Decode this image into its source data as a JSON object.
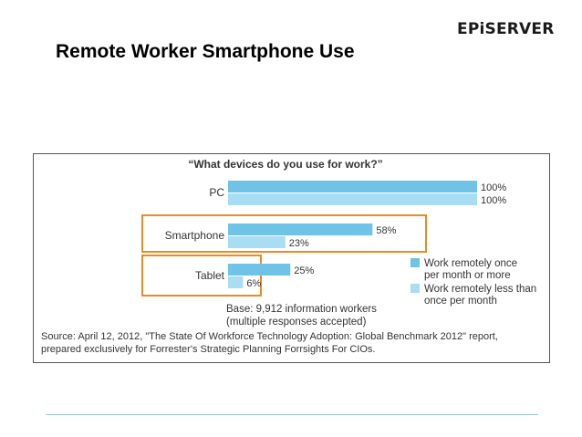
{
  "header": {
    "logo_text": "EPiSERVER",
    "title": "Remote Worker Smartphone Use"
  },
  "colors": {
    "series_once_or_more": "#6ec3e6",
    "series_less_than_once": "#a9ddf3",
    "highlight_box": "#e98b26",
    "frame": "#555555",
    "rule": "#9ec9de"
  },
  "chart_data": {
    "type": "bar",
    "orientation": "horizontal",
    "title": "“What devices do you use for work?”",
    "categories": [
      "PC",
      "Smartphone",
      "Tablet"
    ],
    "highlighted_categories": [
      "Smartphone",
      "Tablet"
    ],
    "series": [
      {
        "name": "Work remotely once per month or more",
        "values": [
          100,
          58,
          25
        ],
        "labels": [
          "100%",
          "58%",
          "25%"
        ]
      },
      {
        "name": "Work remotely less than once per month",
        "values": [
          100,
          23,
          6
        ],
        "labels": [
          "100%",
          "23%",
          "6%"
        ]
      }
    ],
    "xlim": [
      0,
      100
    ],
    "unit": "%",
    "legend": [
      {
        "line1": "Work remotely once",
        "line2": "per month or more"
      },
      {
        "line1": "Work remotely less than",
        "line2": "once per month"
      }
    ],
    "legend_position": "right",
    "base_note": [
      "Base: 9,912 information workers",
      "(multiple responses accepted)"
    ],
    "source": [
      "Source: April 12, 2012, \"The State Of Workforce Technology Adoption: Global Benchmark 2012\" report,",
      "prepared exclusively for Forrester's Strategic Planning Forrsights For CIOs."
    ]
  }
}
